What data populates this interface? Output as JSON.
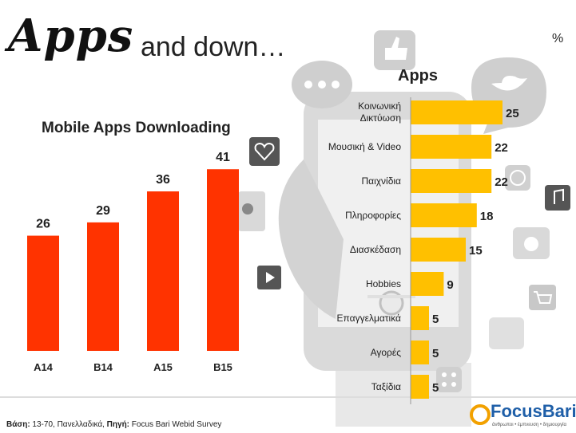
{
  "header": {
    "title_main": "Apps",
    "title_rest": "and down…",
    "unit": "%"
  },
  "footer": {
    "label1": "Βάση:",
    "text1": " 13-70, Πανελλαδικά, ",
    "label2": "Πηγή:",
    "text2": " Focus Bari Webid Survey"
  },
  "logo": {
    "name": "FocusBari",
    "tagline": "άνθρωποι • έμπνευση • δημιουργία"
  },
  "colors": {
    "left_bar": "#ff3300",
    "right_bar": "#ffc000"
  },
  "chart_data": [
    {
      "type": "bar",
      "title": "Mobile Apps Downloading",
      "categories": [
        "A14",
        "B14",
        "A15",
        "B15"
      ],
      "values": [
        26,
        29,
        36,
        41
      ],
      "xlabel": "",
      "ylabel": "",
      "ylim": [
        0,
        45
      ],
      "grid": false
    },
    {
      "type": "bar",
      "orientation": "horizontal",
      "title": "Apps",
      "categories": [
        "Κοινωνική Δικτύωση",
        "Μουσική & Video",
        "Παιχνίδια",
        "Πληροφορίες",
        "Διασκέδαση",
        "Hobbies",
        "Επαγγελματικά",
        "Αγορές",
        "Ταξίδια"
      ],
      "values": [
        25,
        22,
        22,
        18,
        15,
        9,
        5,
        5,
        5
      ],
      "xlabel": "",
      "ylabel": "",
      "xlim": [
        0,
        30
      ],
      "grid": false
    }
  ]
}
